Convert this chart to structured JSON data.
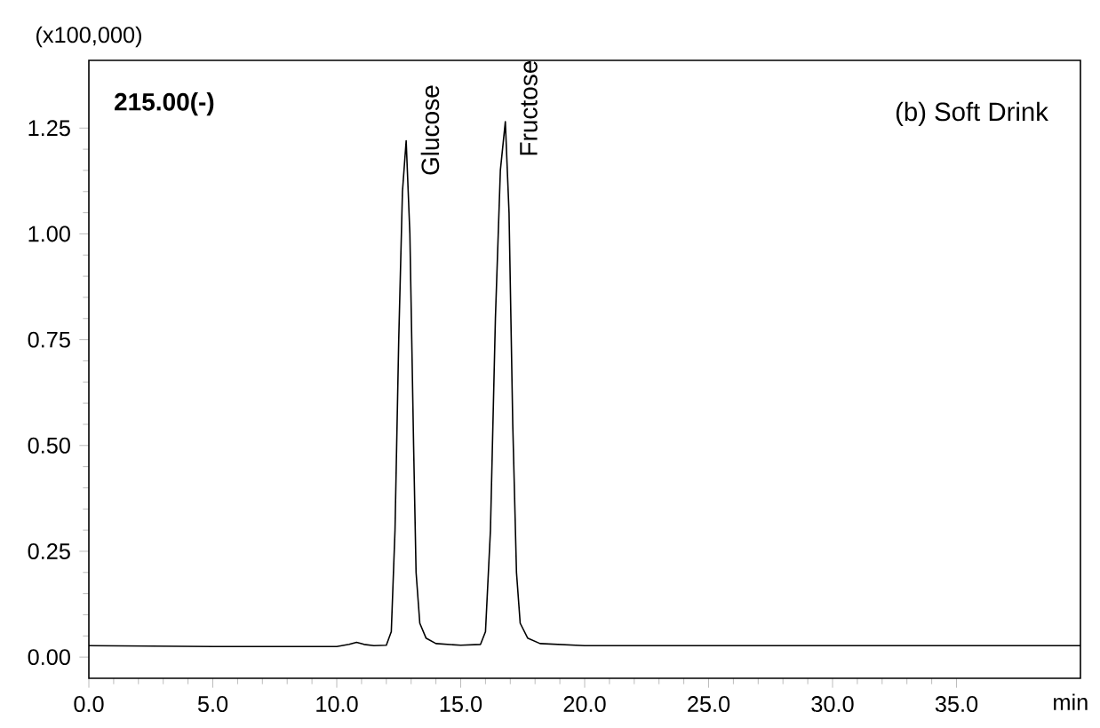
{
  "chart_data": {
    "type": "line",
    "xlabel": "min",
    "ylabel": "(x100,000)",
    "x": [
      0,
      5,
      10,
      10.5,
      10.8,
      11.1,
      11.5,
      12.0,
      12.2,
      12.35,
      12.5,
      12.65,
      12.8,
      12.95,
      13.1,
      13.2,
      13.35,
      13.6,
      14.0,
      15.0,
      15.8,
      16.0,
      16.2,
      16.4,
      16.6,
      16.8,
      16.95,
      17.1,
      17.25,
      17.4,
      17.7,
      18.2,
      20,
      30,
      40
    ],
    "series": [
      {
        "color": "#000000",
        "values": [
          0.027,
          0.025,
          0.025,
          0.03,
          0.035,
          0.03,
          0.027,
          0.028,
          0.06,
          0.3,
          0.75,
          1.1,
          1.22,
          1.0,
          0.5,
          0.2,
          0.08,
          0.045,
          0.032,
          0.028,
          0.03,
          0.06,
          0.3,
          0.8,
          1.15,
          1.265,
          1.05,
          0.55,
          0.2,
          0.08,
          0.045,
          0.032,
          0.027,
          0.027,
          0.027
        ]
      }
    ],
    "xlim": [
      0,
      40
    ],
    "ylim": [
      -0.05,
      1.41
    ],
    "xticks": [
      {
        "value": 0,
        "label": "0.0"
      },
      {
        "value": 5,
        "label": "5.0"
      },
      {
        "value": 10,
        "label": "10.0"
      },
      {
        "value": 15,
        "label": "15.0"
      },
      {
        "value": 20,
        "label": "20.0"
      },
      {
        "value": 25,
        "label": "25.0"
      },
      {
        "value": 30,
        "label": "30.0"
      },
      {
        "value": 35,
        "label": "35.0"
      }
    ],
    "yticks": [
      {
        "value": 0,
        "label": "0.00"
      },
      {
        "value": 0.25,
        "label": "0.25"
      },
      {
        "value": 0.5,
        "label": "0.50"
      },
      {
        "value": 0.75,
        "label": "0.75"
      },
      {
        "value": 1.0,
        "label": "1.00"
      },
      {
        "value": 1.25,
        "label": "1.25"
      }
    ],
    "annotations": [
      "215.00(-)",
      "(b) Soft Drink",
      {
        "text": "Glucose",
        "x": 12.8,
        "y": 1.22
      },
      {
        "text": "Fructose",
        "x": 16.8,
        "y": 1.265
      }
    ]
  }
}
